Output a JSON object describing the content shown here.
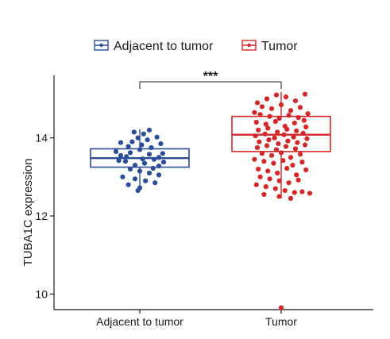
{
  "chart_data": {
    "type": "box",
    "title": "",
    "xlabel": "",
    "ylabel": "TUBA1C expression",
    "ylim": [
      9.6,
      15.6
    ],
    "yticks": [
      10,
      12,
      14
    ],
    "categories": [
      "Adjacent to tumor",
      "Tumor"
    ],
    "legend": {
      "position": "top",
      "entries": [
        "Adjacent to tumor",
        "Tumor"
      ]
    },
    "colors": {
      "Adjacent to tumor": "#2a4d9b",
      "Tumor": "#d62728"
    },
    "significance": {
      "label": "***",
      "between": [
        "Adjacent to tumor",
        "Tumor"
      ]
    },
    "series": [
      {
        "name": "Adjacent to tumor",
        "box": {
          "q1": 13.25,
          "median": 13.48,
          "q3": 13.72,
          "whisker_low": 12.65,
          "whisker_high": 14.22
        },
        "points": [
          [
            -0.2,
            13.55
          ],
          [
            -0.1,
            13.62
          ],
          [
            0.0,
            13.7
          ],
          [
            0.1,
            13.58
          ],
          [
            0.2,
            13.5
          ],
          [
            -0.15,
            13.4
          ],
          [
            0.05,
            13.35
          ],
          [
            0.15,
            13.45
          ],
          [
            -0.05,
            13.3
          ],
          [
            0.25,
            13.38
          ],
          [
            -0.25,
            13.65
          ],
          [
            0.12,
            13.75
          ],
          [
            -0.12,
            13.78
          ],
          [
            0.02,
            13.82
          ],
          [
            -0.08,
            13.9
          ],
          [
            0.08,
            13.95
          ],
          [
            -0.02,
            14.0
          ],
          [
            0.18,
            14.02
          ],
          [
            0.04,
            14.1
          ],
          [
            -0.06,
            14.15
          ],
          [
            0.1,
            14.2
          ],
          [
            0.22,
            13.85
          ],
          [
            -0.2,
            13.88
          ],
          [
            -0.1,
            13.2
          ],
          [
            0.0,
            13.15
          ],
          [
            0.1,
            13.1
          ],
          [
            0.2,
            13.05
          ],
          [
            -0.18,
            13.0
          ],
          [
            -0.05,
            12.95
          ],
          [
            0.06,
            12.9
          ],
          [
            0.16,
            12.85
          ],
          [
            -0.12,
            12.8
          ],
          [
            0.0,
            12.72
          ],
          [
            -0.02,
            12.65
          ],
          [
            0.14,
            13.22
          ],
          [
            -0.22,
            13.42
          ],
          [
            0.24,
            13.6
          ],
          [
            -0.14,
            13.52
          ],
          [
            0.03,
            13.46
          ],
          [
            0.2,
            13.28
          ]
        ]
      },
      {
        "name": "Tumor",
        "box": {
          "q1": 13.65,
          "median": 14.08,
          "q3": 14.55,
          "whisker_low": 12.45,
          "whisker_high": 15.18
        },
        "points": [
          [
            -0.25,
            14.9
          ],
          [
            -0.15,
            15.0
          ],
          [
            -0.05,
            15.1
          ],
          [
            0.05,
            15.05
          ],
          [
            0.15,
            14.95
          ],
          [
            0.25,
            15.12
          ],
          [
            -0.2,
            14.8
          ],
          [
            -0.1,
            14.75
          ],
          [
            0.0,
            14.85
          ],
          [
            0.1,
            14.7
          ],
          [
            0.2,
            14.78
          ],
          [
            -0.28,
            14.65
          ],
          [
            -0.22,
            14.6
          ],
          [
            -0.12,
            14.55
          ],
          [
            -0.02,
            14.5
          ],
          [
            0.08,
            14.58
          ],
          [
            0.18,
            14.52
          ],
          [
            0.28,
            14.62
          ],
          [
            -0.26,
            14.4
          ],
          [
            -0.16,
            14.35
          ],
          [
            -0.06,
            14.42
          ],
          [
            0.04,
            14.3
          ],
          [
            0.14,
            14.38
          ],
          [
            0.24,
            14.45
          ],
          [
            -0.24,
            14.2
          ],
          [
            -0.14,
            14.25
          ],
          [
            -0.04,
            14.15
          ],
          [
            0.06,
            14.22
          ],
          [
            0.16,
            14.18
          ],
          [
            0.26,
            14.28
          ],
          [
            -0.27,
            14.05
          ],
          [
            -0.17,
            14.1
          ],
          [
            -0.07,
            14.0
          ],
          [
            0.03,
            14.08
          ],
          [
            0.13,
            14.02
          ],
          [
            0.23,
            14.12
          ],
          [
            -0.23,
            13.9
          ],
          [
            -0.13,
            13.95
          ],
          [
            -0.03,
            13.85
          ],
          [
            0.07,
            13.92
          ],
          [
            0.17,
            13.88
          ],
          [
            0.27,
            13.98
          ],
          [
            -0.25,
            13.75
          ],
          [
            -0.15,
            13.8
          ],
          [
            -0.05,
            13.7
          ],
          [
            0.05,
            13.78
          ],
          [
            0.15,
            13.72
          ],
          [
            0.25,
            13.82
          ],
          [
            -0.2,
            13.6
          ],
          [
            -0.1,
            13.55
          ],
          [
            0.0,
            13.62
          ],
          [
            0.1,
            13.5
          ],
          [
            0.2,
            13.58
          ],
          [
            -0.28,
            13.45
          ],
          [
            -0.18,
            13.4
          ],
          [
            -0.08,
            13.35
          ],
          [
            0.02,
            13.42
          ],
          [
            0.12,
            13.3
          ],
          [
            0.22,
            13.38
          ],
          [
            -0.24,
            13.2
          ],
          [
            -0.14,
            13.15
          ],
          [
            -0.04,
            13.1
          ],
          [
            0.06,
            13.22
          ],
          [
            0.16,
            13.05
          ],
          [
            0.26,
            13.18
          ],
          [
            -0.22,
            13.0
          ],
          [
            -0.12,
            12.95
          ],
          [
            -0.02,
            12.9
          ],
          [
            0.08,
            12.85
          ],
          [
            0.18,
            12.92
          ],
          [
            -0.26,
            12.8
          ],
          [
            -0.16,
            12.75
          ],
          [
            -0.06,
            12.7
          ],
          [
            0.04,
            12.65
          ],
          [
            0.14,
            12.6
          ],
          [
            -0.18,
            12.55
          ],
          [
            -0.02,
            12.5
          ],
          [
            0.1,
            12.45
          ],
          [
            0.22,
            12.62
          ],
          [
            0.3,
            12.58
          ],
          [
            0.0,
            9.65
          ]
        ]
      }
    ]
  }
}
